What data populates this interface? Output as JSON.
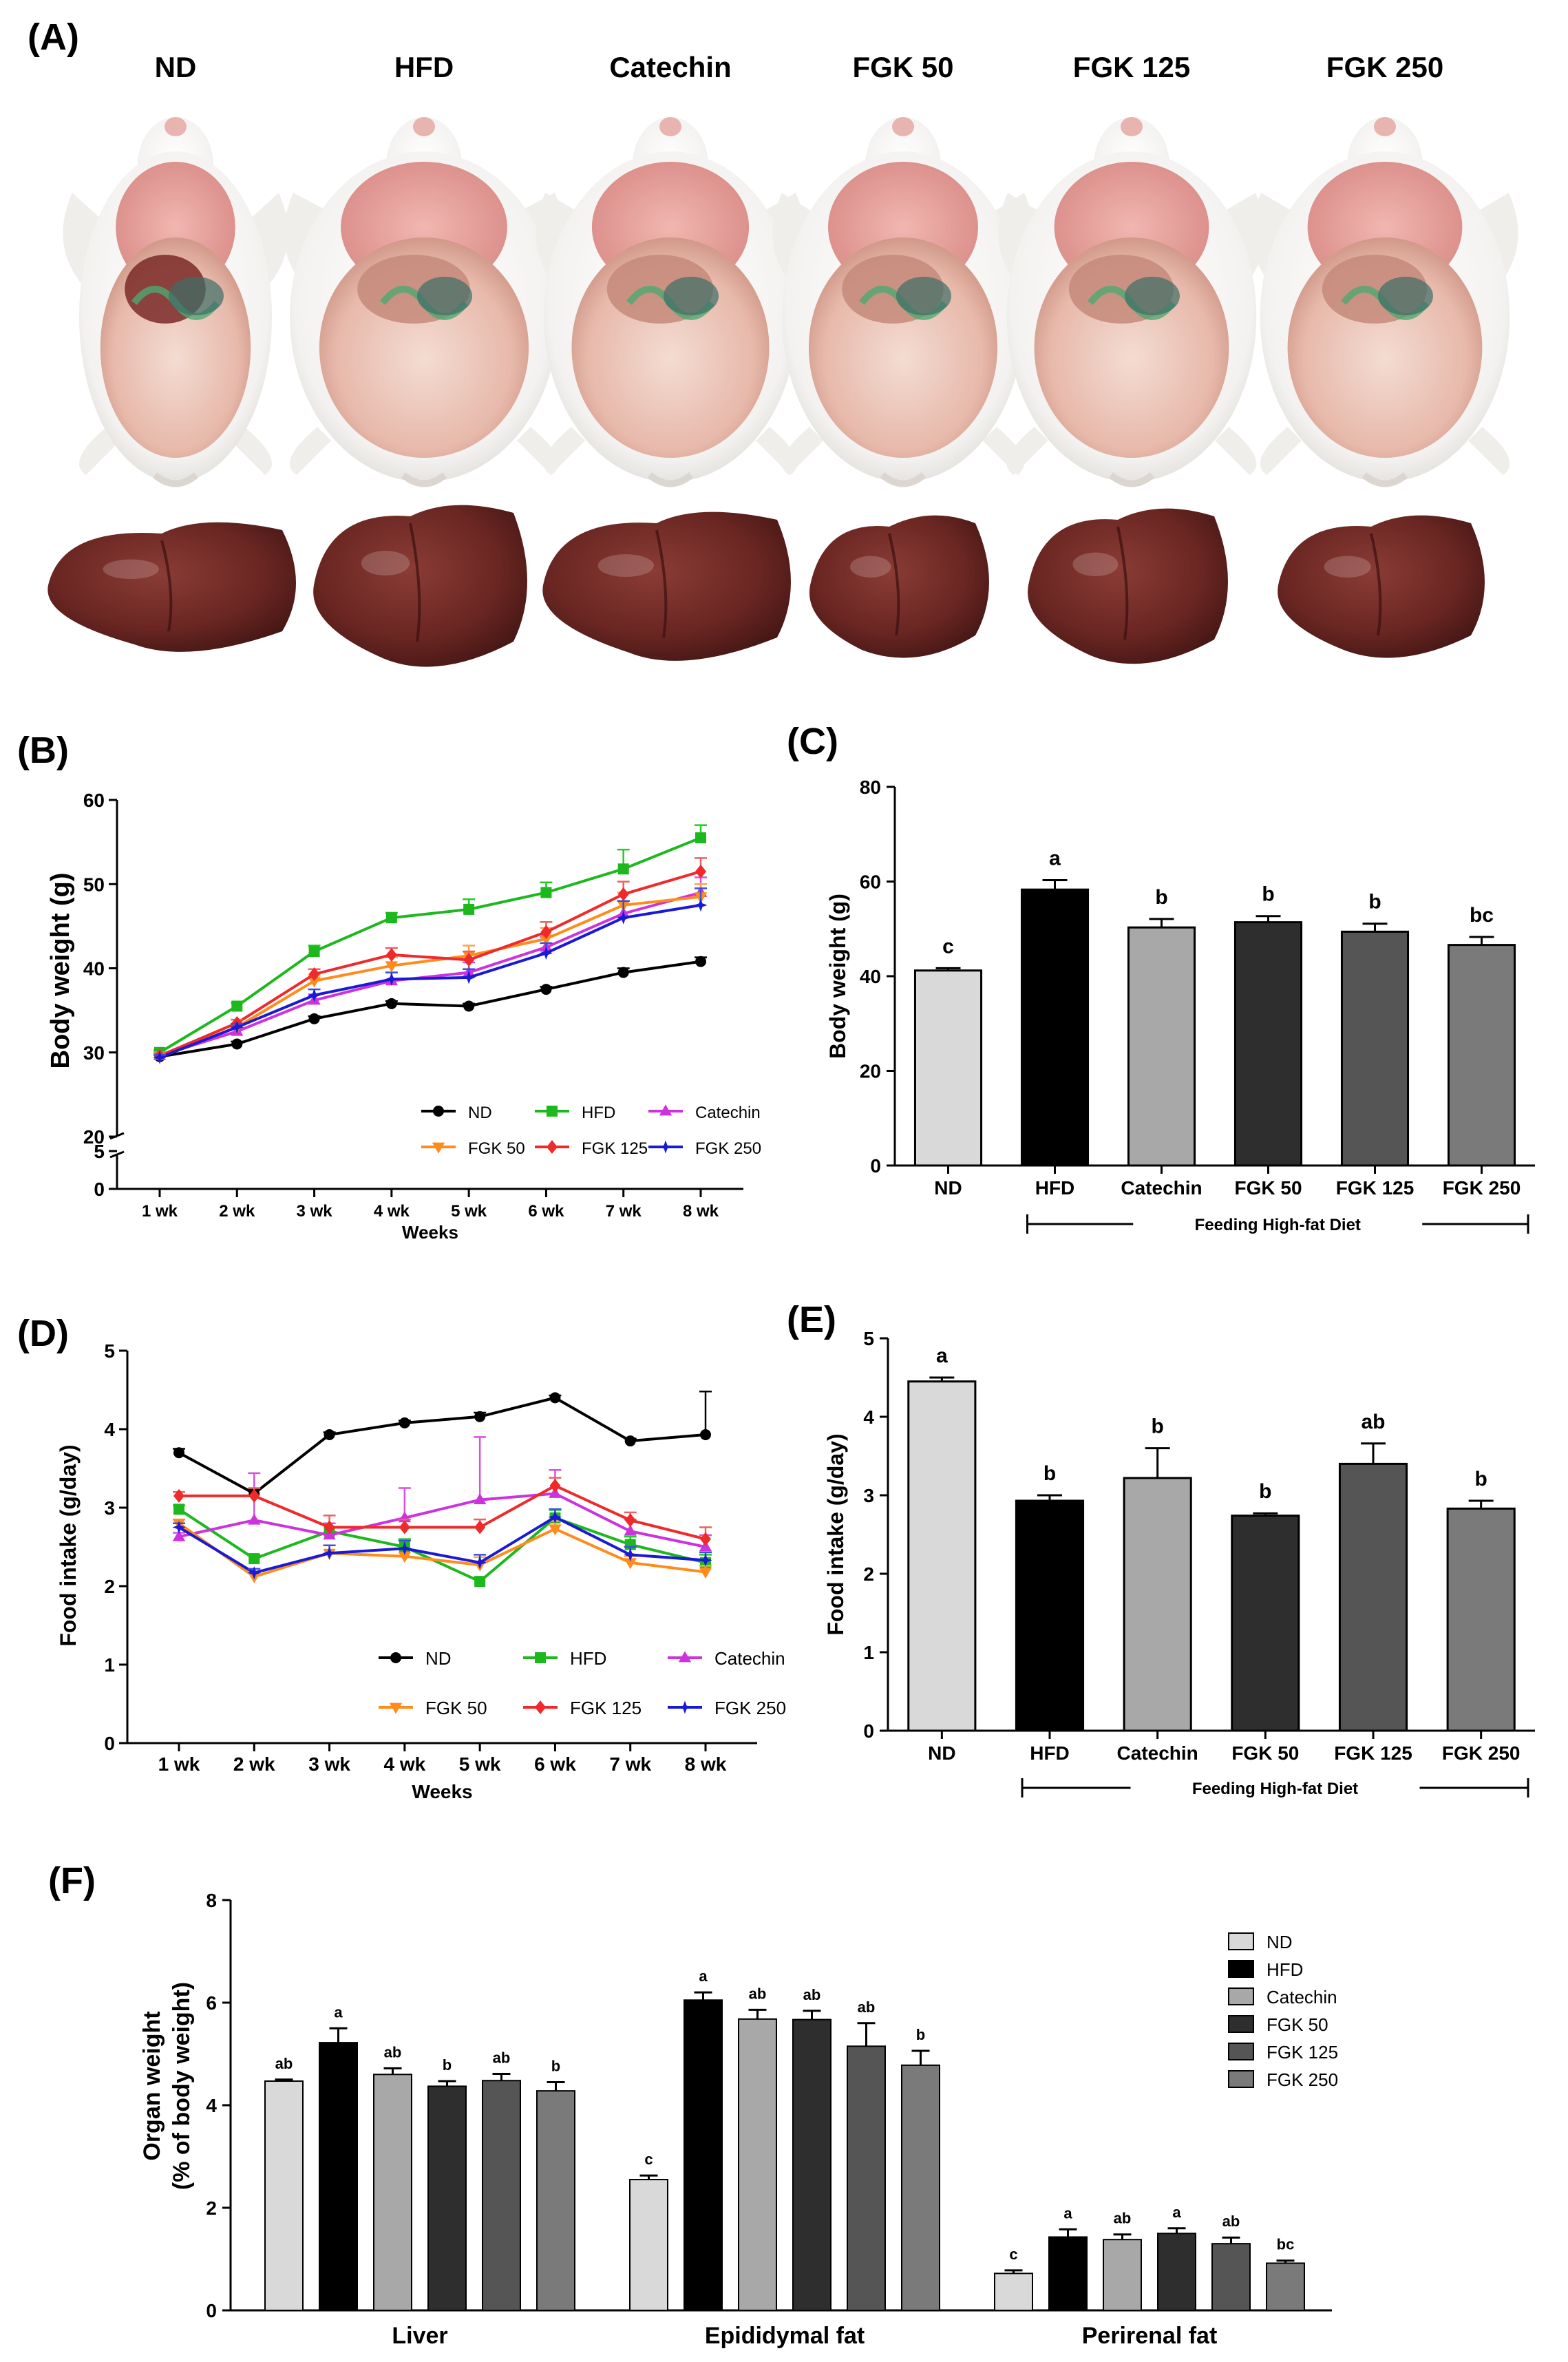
{
  "panel_labels": [
    "(A)",
    "(B)",
    "(C)",
    "(D)",
    "(E)",
    "(F)"
  ],
  "groups": [
    "ND",
    "HFD",
    "Catechin",
    "FGK 50",
    "FGK 125",
    "FGK 250"
  ],
  "colors": {
    "line": [
      "#000000",
      "#1db81d",
      "#cc33dd",
      "#ff8c1a",
      "#ee2a2a",
      "#1a1ad6"
    ],
    "line_light": [
      "#000000",
      "#22cc22",
      "#d94fe0",
      "#ffa34d",
      "#f06060",
      "#3a4fe0"
    ],
    "bar": [
      "#d9d9d9",
      "#000000",
      "#a8a8a8",
      "#2e2e2e",
      "#555555",
      "#7a7a7a"
    ]
  },
  "chart_data": [
    {
      "id": "A",
      "type": "image-grid",
      "columns": [
        "ND",
        "HFD",
        "Catechin",
        "FGK 50",
        "FGK 125",
        "FGK 250"
      ],
      "rows": [
        "mouse abdomen",
        "liver"
      ]
    },
    {
      "id": "B",
      "type": "line",
      "xlabel": "Weeks",
      "ylabel": "Body weight (g)",
      "categories": [
        "1 wk",
        "2 wk",
        "3 wk",
        "4 wk",
        "5 wk",
        "6 wk",
        "7 wk",
        "8 wk"
      ],
      "ylim": [
        0,
        60
      ],
      "axis_break": [
        5,
        20
      ],
      "yticks": [
        0,
        5,
        20,
        30,
        40,
        50,
        60
      ],
      "series": [
        {
          "name": "ND",
          "marker": "circle",
          "values": [
            29.5,
            31.0,
            34.0,
            35.8,
            35.5,
            37.5,
            39.5,
            40.8
          ],
          "errors": [
            0.3,
            0.3,
            0.3,
            0.3,
            0.3,
            0.3,
            0.5,
            0.5
          ]
        },
        {
          "name": "HFD",
          "marker": "square",
          "values": [
            30.0,
            35.5,
            42.0,
            46.0,
            47.0,
            49.0,
            51.8,
            55.5
          ],
          "errors": [
            0.3,
            0.4,
            0.7,
            0.6,
            1.2,
            1.2,
            2.3,
            1.5
          ]
        },
        {
          "name": "Catechin",
          "marker": "triangle",
          "values": [
            29.6,
            32.5,
            36.2,
            38.5,
            39.5,
            42.5,
            46.5,
            49.0
          ],
          "errors": [
            0.3,
            0.4,
            0.7,
            1.0,
            1.2,
            1.2,
            1.5,
            1.8
          ]
        },
        {
          "name": "FGK 50",
          "marker": "tri-down",
          "values": [
            29.6,
            33.0,
            38.5,
            40.3,
            41.5,
            43.5,
            47.5,
            48.5
          ],
          "errors": [
            0.3,
            0.4,
            0.7,
            1.0,
            1.2,
            1.3,
            1.5,
            1.5
          ]
        },
        {
          "name": "FGK 125",
          "marker": "diamond",
          "values": [
            29.6,
            33.5,
            39.3,
            41.6,
            41.0,
            44.3,
            48.8,
            51.5
          ],
          "errors": [
            0.3,
            0.4,
            0.6,
            0.8,
            1.0,
            1.2,
            1.5,
            1.6
          ]
        },
        {
          "name": "FGK 250",
          "marker": "star",
          "values": [
            29.4,
            33.0,
            36.8,
            38.7,
            38.9,
            41.8,
            46.0,
            47.5
          ],
          "errors": [
            0.3,
            0.4,
            0.7,
            0.8,
            1.0,
            1.2,
            2.0,
            2.0
          ]
        }
      ],
      "legend": "lower-right"
    },
    {
      "id": "C",
      "type": "bar",
      "ylabel": "Body weight  (g)",
      "categories": [
        "ND",
        "HFD",
        "Catechin",
        "FGK 50",
        "FGK 125",
        "FGK 250"
      ],
      "values": [
        41.2,
        58.3,
        50.3,
        51.4,
        49.4,
        46.6
      ],
      "errors": [
        0.5,
        2.0,
        1.8,
        1.3,
        1.7,
        1.7
      ],
      "letters": [
        "c",
        "a",
        "b",
        "b",
        "b",
        "bc"
      ],
      "ylim": [
        0,
        80
      ],
      "yticks": [
        0,
        20,
        40,
        60,
        80
      ],
      "bracket_label": "Feeding High-fat Diet"
    },
    {
      "id": "D",
      "type": "line",
      "xlabel": "Weeks",
      "ylabel": "Food intake (g/day)",
      "categories": [
        "1 wk",
        "2 wk",
        "3 wk",
        "4 wk",
        "5 wk",
        "6 wk",
        "7 wk",
        "8 wk"
      ],
      "ylim": [
        0,
        5
      ],
      "yticks": [
        0,
        1,
        2,
        3,
        4,
        5
      ],
      "series": [
        {
          "name": "ND",
          "marker": "circle",
          "values": [
            3.7,
            3.18,
            3.93,
            4.08,
            4.16,
            4.4,
            3.85,
            3.93
          ],
          "errors": [
            0.05,
            0.05,
            0.03,
            0.03,
            0.05,
            0.03,
            0.03,
            0.55
          ]
        },
        {
          "name": "HFD",
          "marker": "square",
          "values": [
            2.98,
            2.35,
            2.7,
            2.5,
            2.06,
            2.87,
            2.53,
            2.3
          ],
          "errors": [
            0.05,
            0.05,
            0.1,
            0.1,
            0.05,
            0.1,
            0.1,
            0.1
          ]
        },
        {
          "name": "Catechin",
          "marker": "triangle",
          "values": [
            2.63,
            2.84,
            2.65,
            2.87,
            3.1,
            3.18,
            2.7,
            2.5
          ],
          "errors": [
            0.05,
            0.6,
            0.15,
            0.38,
            0.8,
            0.3,
            0.15,
            0.15
          ]
        },
        {
          "name": "FGK 50",
          "marker": "tri-down",
          "values": [
            2.8,
            2.12,
            2.42,
            2.38,
            2.27,
            2.73,
            2.3,
            2.18
          ],
          "errors": [
            0.05,
            0.05,
            0.1,
            0.1,
            0.1,
            0.1,
            0.08,
            0.08
          ]
        },
        {
          "name": "FGK 125",
          "marker": "diamond",
          "values": [
            3.15,
            3.15,
            2.75,
            2.75,
            2.75,
            3.28,
            2.84,
            2.6
          ],
          "errors": [
            0.05,
            0.1,
            0.15,
            0.1,
            0.1,
            0.1,
            0.1,
            0.15
          ]
        },
        {
          "name": "FGK 250",
          "marker": "star",
          "values": [
            2.75,
            2.17,
            2.42,
            2.48,
            2.3,
            2.88,
            2.4,
            2.33
          ],
          "errors": [
            0.05,
            0.05,
            0.1,
            0.1,
            0.1,
            0.1,
            0.1,
            0.1
          ]
        }
      ],
      "legend": "lower-right"
    },
    {
      "id": "E",
      "type": "bar",
      "ylabel": "Food intake (g/day)",
      "categories": [
        "ND",
        "HFD",
        "Catechin",
        "FGK 50",
        "FGK 125",
        "FGK 250"
      ],
      "values": [
        4.45,
        2.93,
        3.22,
        2.74,
        3.4,
        2.83
      ],
      "errors": [
        0.05,
        0.07,
        0.38,
        0.03,
        0.26,
        0.1
      ],
      "letters": [
        "a",
        "b",
        "b",
        "b",
        "ab",
        "b"
      ],
      "ylim": [
        0,
        5
      ],
      "yticks": [
        0,
        1,
        2,
        3,
        4,
        5
      ],
      "bracket_label": "Feeding High-fat Diet"
    },
    {
      "id": "F",
      "type": "bar",
      "ylabel": "Organ weight",
      "ylabel2": "(% of body weight)",
      "categories": [
        "Liver",
        "Epididymal fat",
        "Perirenal fat"
      ],
      "ylim": [
        0,
        8
      ],
      "yticks": [
        0,
        2,
        4,
        6,
        8
      ],
      "series": [
        {
          "name": "ND",
          "values": [
            4.47,
            2.55,
            0.72
          ],
          "errors": [
            0.03,
            0.08,
            0.06
          ],
          "letters": [
            "ab",
            "c",
            "c"
          ]
        },
        {
          "name": "HFD",
          "values": [
            5.22,
            6.05,
            1.43
          ],
          "errors": [
            0.28,
            0.15,
            0.15
          ],
          "letters": [
            "a",
            "a",
            "a"
          ]
        },
        {
          "name": "Catechin",
          "values": [
            4.6,
            5.68,
            1.38
          ],
          "errors": [
            0.12,
            0.18,
            0.1
          ],
          "letters": [
            "ab",
            "ab",
            "ab"
          ]
        },
        {
          "name": "FGK 50",
          "values": [
            4.37,
            5.67,
            1.5
          ],
          "errors": [
            0.1,
            0.17,
            0.1
          ],
          "letters": [
            "b",
            "ab",
            "a"
          ]
        },
        {
          "name": "FGK 125",
          "values": [
            4.48,
            5.15,
            1.3
          ],
          "errors": [
            0.13,
            0.45,
            0.12
          ],
          "letters": [
            "ab",
            "ab",
            "ab"
          ]
        },
        {
          "name": "FGK 250",
          "values": [
            4.28,
            4.78,
            0.92
          ],
          "errors": [
            0.17,
            0.28,
            0.05
          ],
          "letters": [
            "b",
            "b",
            "bc"
          ]
        }
      ],
      "legend": "top-right"
    }
  ]
}
